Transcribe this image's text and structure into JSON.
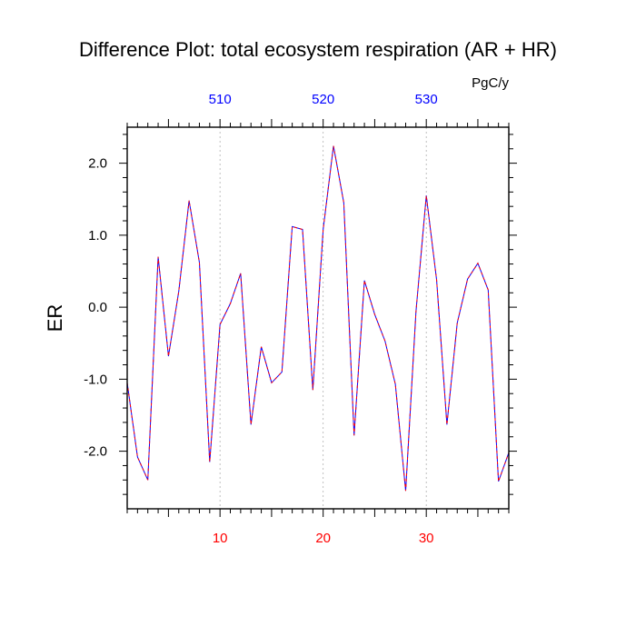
{
  "chart_data": {
    "type": "line",
    "title": "Difference Plot: total ecosystem respiration (AR + HR)",
    "units": "PgC/y",
    "ylabel": "ER",
    "xlabel": "",
    "xlim": [
      1,
      38
    ],
    "ylim": [
      -2.8,
      2.5
    ],
    "grid": "vertical dashed at labeled bottom ticks",
    "x_bottom_ticks": [
      10,
      20,
      30
    ],
    "x_bottom_tick_labels": [
      "10",
      "20",
      "30"
    ],
    "x_top_ticks": [
      10,
      20,
      30
    ],
    "x_top_tick_labels": [
      "510",
      "520",
      "530"
    ],
    "y_ticks": [
      2,
      1,
      0,
      -1,
      -2
    ],
    "y_tick_labels": [
      "2.0",
      "1.0",
      "0.0",
      "-1.0",
      "-2.0"
    ],
    "colors": {
      "line_primary": "#0000ff",
      "line_secondary": "#ff0000",
      "bottom_labels": "#ff0000",
      "top_labels": "#0000ff",
      "grid": "#b0b0b0"
    },
    "series": [
      {
        "x": [
          1,
          2,
          3,
          4,
          5,
          6,
          7,
          8,
          9,
          10,
          11,
          12,
          13,
          14,
          15,
          16,
          17,
          18,
          19,
          20,
          21,
          22,
          23,
          24,
          25,
          26,
          27,
          28,
          29,
          30,
          31,
          32,
          33,
          34,
          35,
          36,
          37,
          38
        ],
        "values": [
          -1.05,
          -2.08,
          -2.4,
          0.7,
          -0.68,
          0.22,
          1.48,
          0.62,
          -2.15,
          -0.24,
          0.05,
          0.47,
          -1.63,
          -0.55,
          -1.05,
          -0.9,
          1.12,
          1.08,
          -1.15,
          1.08,
          2.24,
          1.45,
          -1.78,
          0.37,
          -0.1,
          -0.47,
          -1.07,
          -2.55,
          -0.06,
          1.55,
          0.38,
          -1.63,
          -0.22,
          0.39,
          0.61,
          0.24,
          -2.42,
          -2.02
        ]
      }
    ]
  }
}
